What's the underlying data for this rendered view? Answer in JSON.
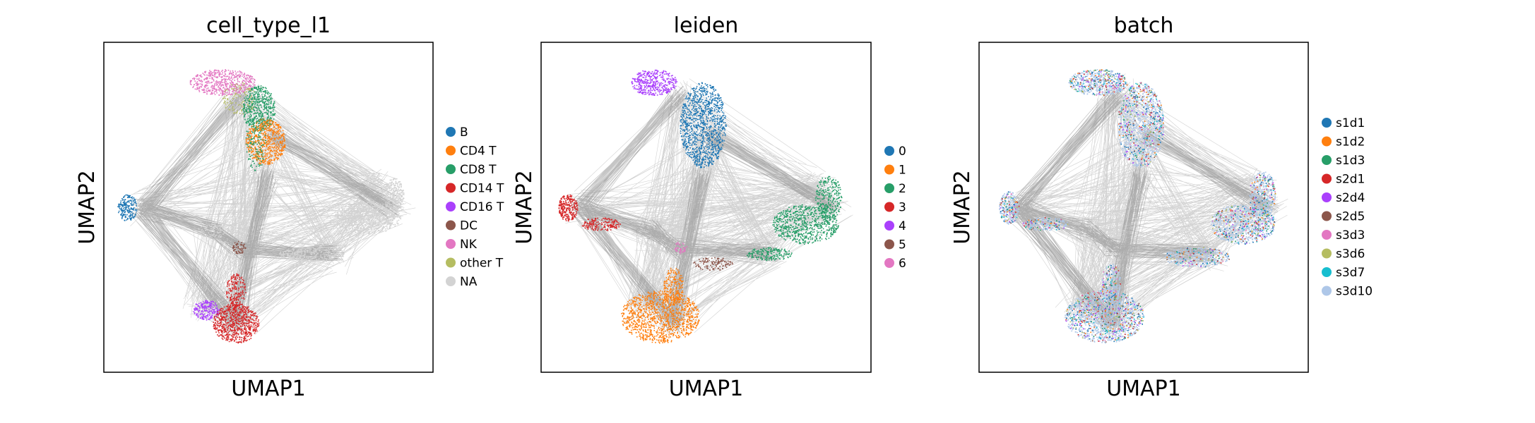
{
  "chart_data": [
    {
      "type": "scatter",
      "title": "cell_type_l1",
      "xlabel": "UMAP1",
      "ylabel": "UMAP2",
      "grid": false,
      "legend_placement": "right",
      "legend": [
        {
          "label": "B",
          "color": "#1f77b4"
        },
        {
          "label": "CD4 T",
          "color": "#ff7f0e"
        },
        {
          "label": "CD8 T",
          "color": "#279e68"
        },
        {
          "label": "CD14 T",
          "color": "#d62728"
        },
        {
          "label": "CD16 T",
          "color": "#aa40fc"
        },
        {
          "label": "DC",
          "color": "#8c564b"
        },
        {
          "label": "NK",
          "color": "#e377c2"
        },
        {
          "label": "other T",
          "color": "#b5bd61"
        },
        {
          "label": "NA",
          "color": "#d3d3d3"
        }
      ]
    },
    {
      "type": "scatter",
      "title": "leiden",
      "xlabel": "UMAP1",
      "ylabel": "UMAP2",
      "grid": false,
      "legend_placement": "right",
      "legend": [
        {
          "label": "0",
          "color": "#1f77b4"
        },
        {
          "label": "1",
          "color": "#ff7f0e"
        },
        {
          "label": "2",
          "color": "#279e68"
        },
        {
          "label": "3",
          "color": "#d62728"
        },
        {
          "label": "4",
          "color": "#aa40fc"
        },
        {
          "label": "5",
          "color": "#8c564b"
        },
        {
          "label": "6",
          "color": "#e377c2"
        }
      ]
    },
    {
      "type": "scatter",
      "title": "batch",
      "xlabel": "UMAP1",
      "ylabel": "UMAP2",
      "grid": false,
      "legend_placement": "right",
      "legend": [
        {
          "label": "s1d1",
          "color": "#1f77b4"
        },
        {
          "label": "s1d2",
          "color": "#ff7f0e"
        },
        {
          "label": "s1d3",
          "color": "#279e68"
        },
        {
          "label": "s2d1",
          "color": "#d62728"
        },
        {
          "label": "s2d4",
          "color": "#aa40fc"
        },
        {
          "label": "s2d5",
          "color": "#8c564b"
        },
        {
          "label": "s3d3",
          "color": "#e377c2"
        },
        {
          "label": "s3d6",
          "color": "#b5bd61"
        },
        {
          "label": "s3d7",
          "color": "#17becf"
        },
        {
          "label": "s3d10",
          "color": "#aec7e8"
        }
      ]
    }
  ]
}
